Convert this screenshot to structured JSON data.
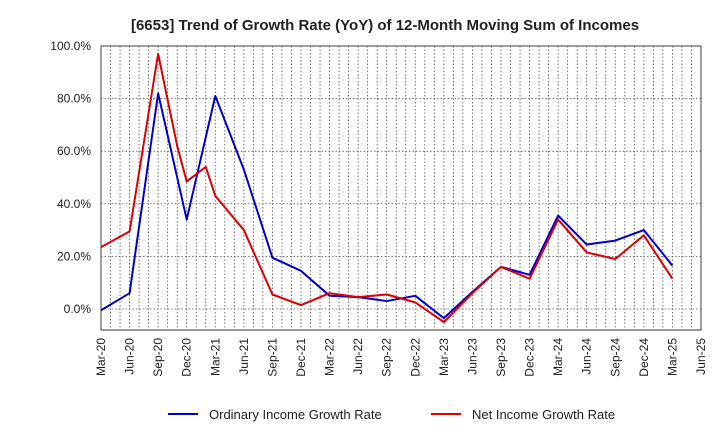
{
  "chart_data": {
    "type": "line",
    "title": "[6653]  Trend of Growth Rate (YoY) of 12-Month Moving Sum of Incomes",
    "xlabel": "",
    "ylabel": "",
    "ylim": [
      -8,
      100
    ],
    "yticks": [
      0,
      20,
      40,
      60,
      80,
      100
    ],
    "ytick_labels": [
      "0.0%",
      "20.0%",
      "40.0%",
      "60.0%",
      "80.0%",
      "100.0%"
    ],
    "x": [
      "Mar-20",
      "Apr-20",
      "May-20",
      "Jun-20",
      "Jul-20",
      "Aug-20",
      "Sep-20",
      "Oct-20",
      "Nov-20",
      "Dec-20",
      "Jan-21",
      "Feb-21",
      "Mar-21",
      "Apr-21",
      "May-21",
      "Jun-21",
      "Jul-21",
      "Aug-21",
      "Sep-21",
      "Oct-21",
      "Nov-21",
      "Dec-21",
      "Jan-22",
      "Feb-22",
      "Mar-22",
      "Apr-22",
      "May-22",
      "Jun-22",
      "Jul-22",
      "Aug-22",
      "Sep-22",
      "Oct-22",
      "Nov-22",
      "Dec-22",
      "Jan-23",
      "Feb-23",
      "Mar-23",
      "Apr-23",
      "May-23",
      "Jun-23",
      "Jul-23",
      "Aug-23",
      "Sep-23",
      "Oct-23",
      "Nov-23",
      "Dec-23",
      "Jan-24",
      "Feb-24",
      "Mar-24",
      "Apr-24",
      "May-24",
      "Jun-24",
      "Jul-24",
      "Aug-24",
      "Sep-24",
      "Oct-24",
      "Nov-24",
      "Dec-24",
      "Jan-25",
      "Feb-25",
      "Mar-25",
      "Apr-25",
      "May-25",
      "Jun-25"
    ],
    "xtick_labels": [
      "Mar-20",
      "Jun-20",
      "Sep-20",
      "Dec-20",
      "Mar-21",
      "Jun-21",
      "Sep-21",
      "Dec-21",
      "Mar-22",
      "Jun-22",
      "Sep-22",
      "Dec-22",
      "Mar-23",
      "Jun-23",
      "Sep-23",
      "Dec-23",
      "Mar-24",
      "Jun-24",
      "Sep-24",
      "Dec-24",
      "Mar-25",
      "Jun-25"
    ],
    "series": [
      {
        "name": "Ordinary Income Growth Rate",
        "color": "#0000cc",
        "points": [
          [
            "Mar-20",
            -0.5
          ],
          [
            "Jun-20",
            6
          ],
          [
            "Sep-20",
            82
          ],
          [
            "Dec-20",
            34
          ],
          [
            "Mar-21",
            81
          ],
          [
            "Jun-21",
            53
          ],
          [
            "Sep-21",
            19.5
          ],
          [
            "Dec-21",
            14.5
          ],
          [
            "Mar-22",
            5
          ],
          [
            "Jun-22",
            4.5
          ],
          [
            "Sep-22",
            3
          ],
          [
            "Dec-22",
            5
          ],
          [
            "Mar-23",
            -3.5
          ],
          [
            "Jun-23",
            6.5
          ],
          [
            "Sep-23",
            16
          ],
          [
            "Dec-23",
            13
          ],
          [
            "Mar-24",
            35.5
          ],
          [
            "Jun-24",
            24.5
          ],
          [
            "Sep-24",
            26
          ],
          [
            "Dec-24",
            30
          ],
          [
            "Mar-25",
            16.5
          ]
        ]
      },
      {
        "name": "Net Income Growth Rate",
        "color": "#dd0000",
        "points": [
          [
            "Mar-20",
            23.5
          ],
          [
            "Jun-20",
            29.5
          ],
          [
            "Sep-20",
            97
          ],
          [
            "Nov-20",
            62
          ],
          [
            "Dec-20",
            48.5
          ],
          [
            "Feb-21",
            54
          ],
          [
            "Mar-21",
            43
          ],
          [
            "Jun-21",
            30
          ],
          [
            "Sep-21",
            5.5
          ],
          [
            "Dec-21",
            1.5
          ],
          [
            "Mar-22",
            6
          ],
          [
            "Jun-22",
            4.5
          ],
          [
            "Sep-22",
            5.5
          ],
          [
            "Dec-22",
            2.5
          ],
          [
            "Mar-23",
            -5
          ],
          [
            "Jun-23",
            6
          ],
          [
            "Sep-23",
            16
          ],
          [
            "Dec-23",
            11.5
          ],
          [
            "Mar-24",
            34
          ],
          [
            "Jun-24",
            21.5
          ],
          [
            "Sep-24",
            19
          ],
          [
            "Dec-24",
            28
          ],
          [
            "Mar-25",
            11.5
          ]
        ]
      }
    ],
    "legend": {
      "position": "bottom"
    },
    "grid": {
      "x": true,
      "y": true,
      "style": "dotted"
    }
  }
}
